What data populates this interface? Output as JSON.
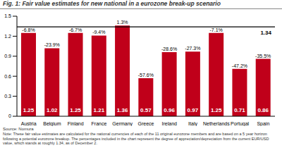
{
  "chart_data": {
    "type": "bar",
    "title": "Fig. 1: Fair value estimates for new national in a eurozone break-up scenario",
    "categories": [
      "Austria",
      "Belgium",
      "Finland",
      "France",
      "Germany",
      "Greece",
      "Ireland",
      "Italy",
      "Netherlands",
      "Portugal",
      "Spain"
    ],
    "values": [
      1.25,
      1.02,
      1.25,
      1.21,
      1.36,
      0.57,
      0.96,
      0.97,
      1.25,
      0.71,
      0.86
    ],
    "annotations": [
      "-6.8%",
      "-23.9%",
      "-6.7%",
      "-9.4%",
      "1.3%",
      "-57.6%",
      "-28.6%",
      "-27.3%",
      "-7.1%",
      "-47.2%",
      "-35.5%"
    ],
    "reference_line": 1.34,
    "color": "#c0001a",
    "ylim": [
      0,
      1.5
    ],
    "yticks": [
      0,
      0.3,
      0.6,
      0.9,
      1.2,
      1.5
    ],
    "grid": false,
    "data_labels": true,
    "source": "Source: Nomura",
    "note": "Note: These fair value estimates are calculated for the national currencies of each of the 11 original eurozone members and are based on a 5 year horizon following a potential eurozone breakup. The percentages included in the chart represent the degree of appreciation/depreciation from the current EUR/USD value, which stands at roughly 1.34, as of December 2."
  }
}
